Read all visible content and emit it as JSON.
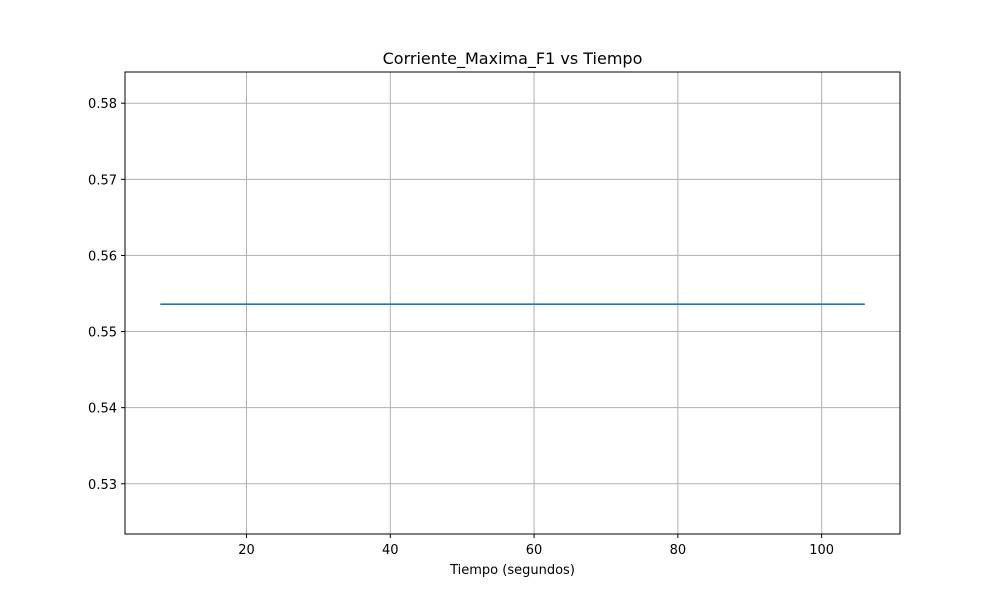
{
  "chart_data": {
    "type": "line",
    "title": "Corriente_Maxima_F1 vs Tiempo",
    "xlabel": "Tiempo (segundos)",
    "ylabel": "",
    "xlim": [
      3.1,
      110.9
    ],
    "ylim": [
      0.5234,
      0.5841
    ],
    "x_ticks": [
      20,
      40,
      60,
      80,
      100
    ],
    "y_ticks": [
      0.53,
      0.54,
      0.55,
      0.56,
      0.57,
      0.58
    ],
    "grid": true,
    "series": [
      {
        "color": "#1f77b4",
        "x": [
          8,
          106
        ],
        "y": [
          0.5536,
          0.5536
        ]
      }
    ]
  }
}
